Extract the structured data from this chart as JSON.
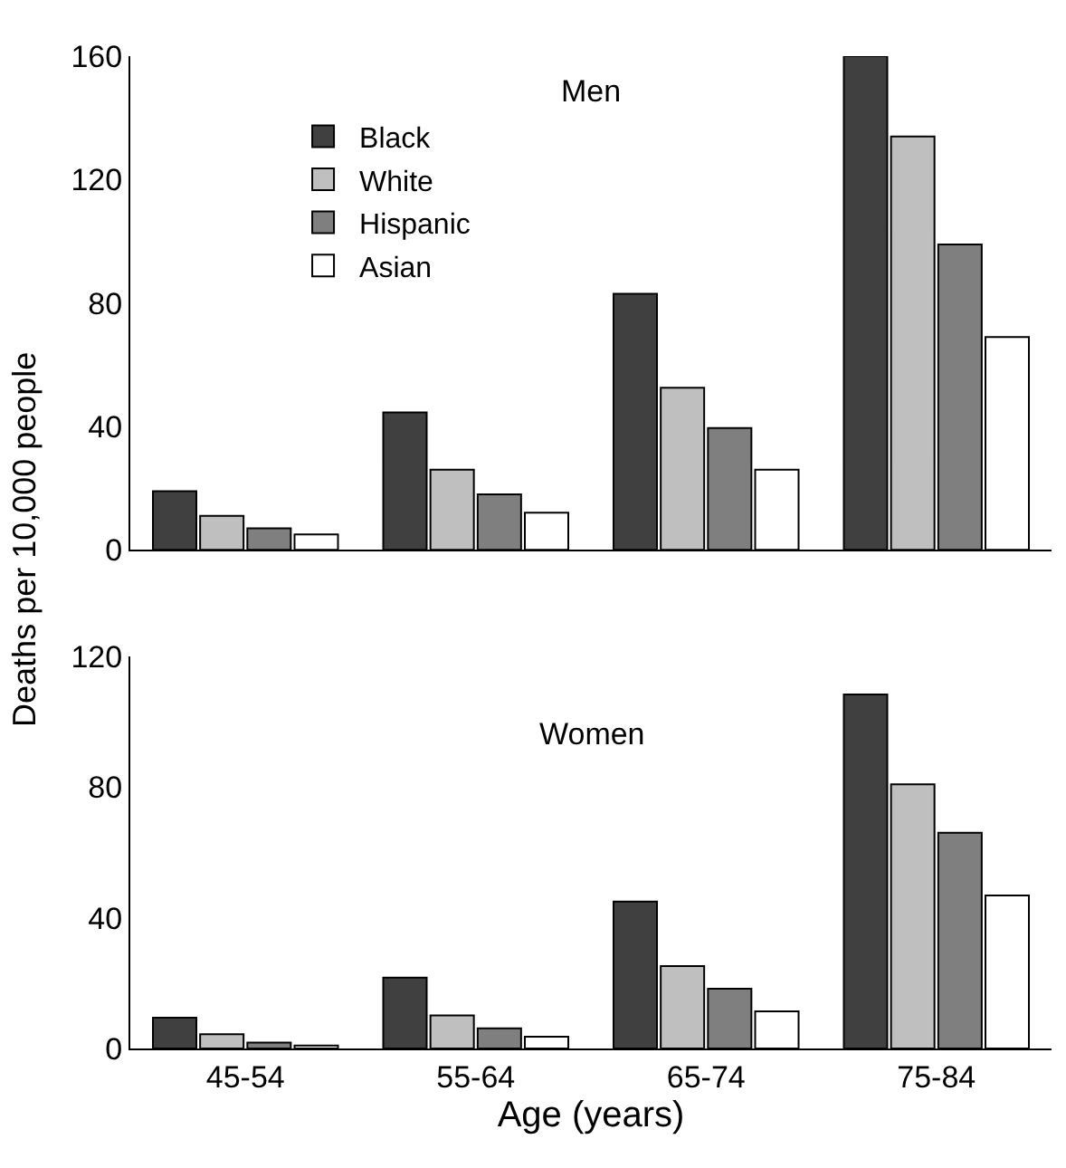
{
  "chart_data": [
    {
      "type": "bar",
      "title": "Men",
      "ylabel": "Deaths per 10,000 people",
      "categories": [
        null,
        null,
        null,
        null
      ],
      "ylim": [
        0,
        160
      ],
      "yticks": [
        0,
        40,
        80,
        120,
        160
      ],
      "grid": false,
      "legend": "top left",
      "tick_labels": "y",
      "series": [
        {
          "name": "Black",
          "color": "#404040",
          "values": [
            19,
            44.5,
            83,
            160
          ]
        },
        {
          "name": "White",
          "color": "#bfbfbf",
          "values": [
            11,
            26,
            52.5,
            134
          ]
        },
        {
          "name": "Hispanic",
          "color": "#7f7f7f",
          "values": [
            7,
            18,
            39.5,
            99
          ]
        },
        {
          "name": "Asian",
          "color": "#ffffff",
          "values": [
            5,
            12,
            26,
            69
          ]
        }
      ]
    },
    {
      "type": "bar",
      "title": "Women",
      "xlabel": "Age (years)",
      "categories": [
        "45-54",
        "55-64",
        "65-74",
        "75-84"
      ],
      "ylim": [
        0,
        120
      ],
      "yticks": [
        0,
        40,
        80,
        120
      ],
      "grid": false,
      "legend": false,
      "series": [
        {
          "color": "#404040",
          "values": [
            9.4,
            21.7,
            45,
            108.4
          ]
        },
        {
          "color": "#bfbfbf",
          "values": [
            4.4,
            10.1,
            25.2,
            80.9
          ]
        },
        {
          "color": "#7f7f7f",
          "values": [
            1.8,
            6.2,
            18.3,
            66.1
          ]
        },
        {
          "color": "#ffffff",
          "values": [
            0.9,
            3.6,
            11.4,
            46.9
          ]
        }
      ]
    }
  ]
}
